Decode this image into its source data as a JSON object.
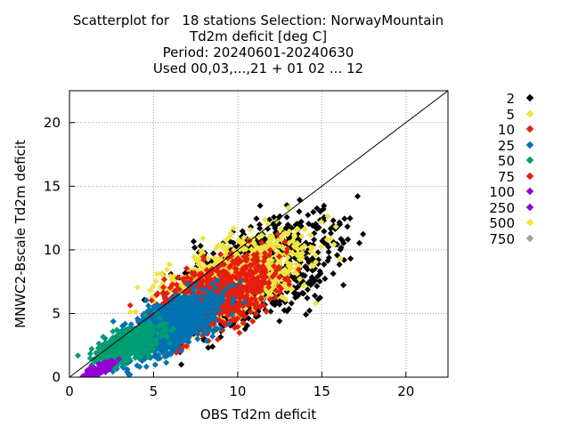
{
  "title_lines": [
    "Scatterplot for   18 stations Selection: NorwayMountain",
    "Td2m deficit [deg C]",
    "Period: 20240601-20240630",
    "Used 00,03,...,21 + 01 02 ... 12"
  ],
  "chart_data": {
    "type": "scatter",
    "xlabel": "OBS Td2m deficit",
    "ylabel": "MNWC2-Bscale Td2m deficit",
    "xlim": [
      0,
      22.5
    ],
    "ylim": [
      0,
      22.5
    ],
    "xticks": [
      "0",
      "5",
      "10",
      "15",
      "20"
    ],
    "yticks": [
      "0",
      "5",
      "10",
      "15",
      "20"
    ],
    "grid": true,
    "diagonal_line": true,
    "legend_position": "right",
    "legend": [
      {
        "label": "2",
        "color": "#000000"
      },
      {
        "label": "5",
        "color": "#f0e442"
      },
      {
        "label": "10",
        "color": "#e51e10"
      },
      {
        "label": "25",
        "color": "#0072b2"
      },
      {
        "label": "50",
        "color": "#009e73"
      },
      {
        "label": "75",
        "color": "#e51e10"
      },
      {
        "label": "100",
        "color": "#9400d3"
      },
      {
        "label": "250",
        "color": "#9400d3"
      },
      {
        "label": "500",
        "color": "#f0e442"
      },
      {
        "label": "750",
        "color": "#a0a0a0"
      }
    ],
    "clusters": [
      {
        "color": "#000000",
        "n": 900,
        "cx": 11,
        "cy": 8,
        "sx": 4.5,
        "sy": 3.6
      },
      {
        "color": "#f0e442",
        "n": 1100,
        "cx": 9.5,
        "cy": 7.5,
        "sx": 4.0,
        "sy": 3.0
      },
      {
        "color": "#e51e10",
        "n": 900,
        "cx": 8.5,
        "cy": 6.2,
        "sx": 3.4,
        "sy": 2.6
      },
      {
        "color": "#0072b2",
        "n": 1000,
        "cx": 6.0,
        "cy": 4.0,
        "sx": 2.8,
        "sy": 2.0
      },
      {
        "color": "#009e73",
        "n": 500,
        "cx": 3.5,
        "cy": 2.5,
        "sx": 1.8,
        "sy": 1.2
      },
      {
        "color": "#9400d3",
        "n": 160,
        "cx": 1.8,
        "cy": 0.6,
        "sx": 0.9,
        "sy": 0.4
      }
    ]
  }
}
